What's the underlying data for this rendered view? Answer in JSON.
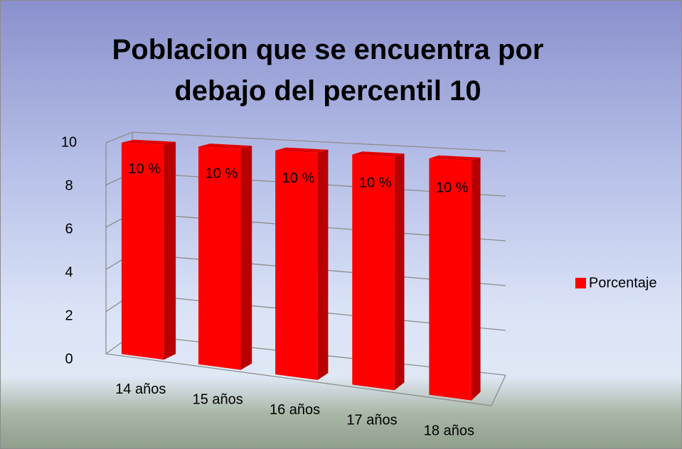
{
  "chart_data": {
    "type": "bar3d",
    "title": "Poblacion que se encuentra por debajo del percentil 10",
    "categories": [
      "14 años",
      "15 años",
      "16 años",
      "17 años",
      "18 años"
    ],
    "series": [
      {
        "name": "Porcentaje",
        "color": "#ff0000",
        "values": [
          10,
          10,
          10,
          10,
          10
        ],
        "value_labels": [
          "10 %",
          "10 %",
          "10 %",
          "10 %",
          "10 %"
        ]
      }
    ],
    "ylim": [
      0,
      10
    ],
    "yticks": [
      0,
      2,
      4,
      6,
      8,
      10
    ],
    "grid": true,
    "legend": "right"
  }
}
